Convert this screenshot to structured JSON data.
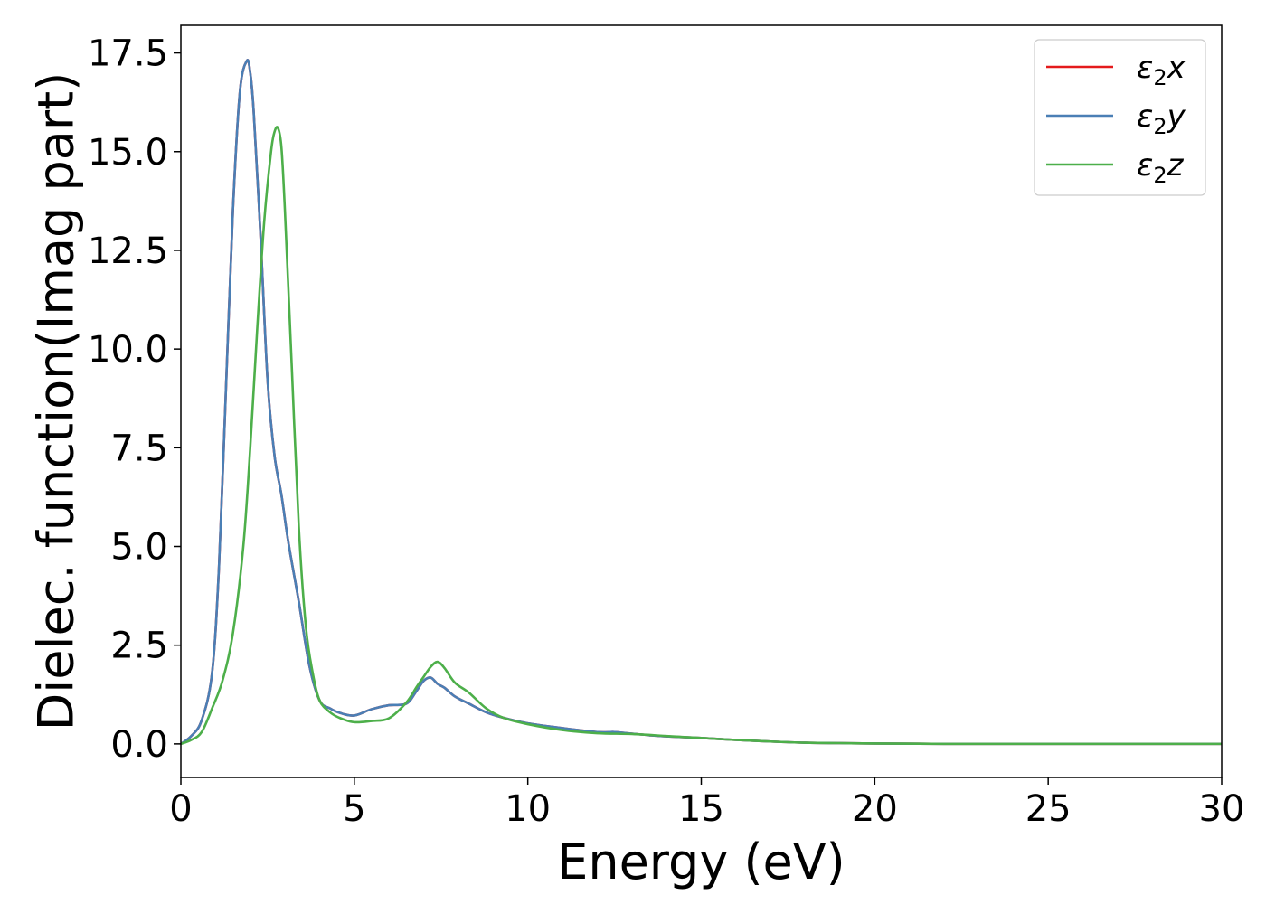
{
  "chart_data": {
    "type": "line",
    "title": "",
    "xlabel": "Energy (eV)",
    "ylabel": "Dielec. function(Imag part)",
    "xlim": [
      0,
      30
    ],
    "ylim": [
      -0.85,
      18.2
    ],
    "xticks": [
      0,
      5,
      10,
      15,
      20,
      25,
      30
    ],
    "yticks": [
      "0.0",
      "2.5",
      "5.0",
      "7.5",
      "10.0",
      "12.5",
      "15.0",
      "17.5"
    ],
    "grid": false,
    "legend_position": "top-right",
    "series": [
      {
        "name": "ε2x",
        "label_main": "ε",
        "label_sub": "2",
        "label_var": "x",
        "color": "#e41a1c",
        "x": [
          0,
          0.3,
          0.6,
          0.9,
          1.1,
          1.3,
          1.5,
          1.7,
          1.9,
          2.0,
          2.1,
          2.3,
          2.5,
          2.7,
          2.9,
          3.1,
          3.4,
          3.7,
          4.0,
          4.3,
          4.6,
          5.0,
          5.5,
          6.0,
          6.5,
          6.8,
          7.0,
          7.2,
          7.4,
          7.6,
          7.9,
          8.3,
          8.8,
          9.3,
          10.0,
          11.0,
          12.0,
          12.5,
          13.0,
          13.5,
          14.0,
          15.0,
          16.0,
          17.0,
          18.0,
          19.0,
          20.0,
          22.0,
          25.0,
          30.0
        ],
        "values": [
          0.0,
          0.2,
          0.6,
          1.8,
          4.5,
          9.0,
          13.5,
          16.5,
          17.3,
          17.0,
          16.0,
          12.8,
          9.2,
          7.3,
          6.3,
          5.1,
          3.6,
          2.0,
          1.1,
          0.9,
          0.78,
          0.72,
          0.88,
          0.98,
          1.02,
          1.35,
          1.6,
          1.68,
          1.52,
          1.42,
          1.2,
          1.02,
          0.8,
          0.66,
          0.52,
          0.4,
          0.3,
          0.3,
          0.26,
          0.22,
          0.19,
          0.15,
          0.1,
          0.06,
          0.03,
          0.02,
          0.01,
          0.0,
          0.0,
          0.0
        ]
      },
      {
        "name": "ε2y",
        "label_main": "ε",
        "label_sub": "2",
        "label_var": "y",
        "color": "#4a7fb5",
        "x": [
          0,
          0.3,
          0.6,
          0.9,
          1.1,
          1.3,
          1.5,
          1.7,
          1.9,
          2.0,
          2.1,
          2.3,
          2.5,
          2.7,
          2.9,
          3.1,
          3.4,
          3.7,
          4.0,
          4.3,
          4.6,
          5.0,
          5.5,
          6.0,
          6.5,
          6.8,
          7.0,
          7.2,
          7.4,
          7.6,
          7.9,
          8.3,
          8.8,
          9.3,
          10.0,
          11.0,
          12.0,
          12.5,
          13.0,
          13.5,
          14.0,
          15.0,
          16.0,
          17.0,
          18.0,
          19.0,
          20.0,
          22.0,
          25.0,
          30.0
        ],
        "values": [
          0.0,
          0.2,
          0.6,
          1.8,
          4.5,
          9.0,
          13.5,
          16.5,
          17.3,
          17.0,
          16.0,
          12.8,
          9.2,
          7.3,
          6.3,
          5.1,
          3.6,
          2.0,
          1.1,
          0.9,
          0.78,
          0.72,
          0.88,
          0.98,
          1.02,
          1.35,
          1.6,
          1.68,
          1.52,
          1.42,
          1.2,
          1.02,
          0.8,
          0.66,
          0.52,
          0.4,
          0.3,
          0.3,
          0.26,
          0.22,
          0.19,
          0.15,
          0.1,
          0.06,
          0.03,
          0.02,
          0.01,
          0.0,
          0.0,
          0.0
        ]
      },
      {
        "name": "ε2z",
        "label_main": "ε",
        "label_sub": "2",
        "label_var": "z",
        "color": "#4daf4a",
        "x": [
          0,
          0.3,
          0.6,
          0.9,
          1.2,
          1.5,
          1.8,
          2.0,
          2.2,
          2.4,
          2.6,
          2.7,
          2.8,
          2.9,
          3.0,
          3.2,
          3.4,
          3.6,
          3.8,
          4.0,
          4.3,
          4.6,
          5.0,
          5.5,
          6.0,
          6.5,
          6.8,
          7.0,
          7.2,
          7.4,
          7.6,
          7.9,
          8.3,
          8.8,
          9.3,
          10.0,
          11.0,
          12.0,
          13.0,
          14.0,
          15.0,
          16.0,
          17.0,
          18.0,
          19.0,
          20.0,
          22.0,
          25.0,
          30.0
        ],
        "values": [
          0.0,
          0.1,
          0.3,
          0.9,
          1.6,
          2.8,
          5.0,
          7.5,
          10.5,
          13.2,
          15.0,
          15.5,
          15.6,
          15.1,
          13.5,
          9.5,
          5.5,
          3.0,
          1.8,
          1.1,
          0.8,
          0.65,
          0.55,
          0.58,
          0.65,
          1.05,
          1.45,
          1.7,
          1.95,
          2.08,
          1.92,
          1.55,
          1.3,
          0.9,
          0.66,
          0.5,
          0.35,
          0.27,
          0.25,
          0.2,
          0.15,
          0.1,
          0.06,
          0.03,
          0.02,
          0.01,
          0.0,
          0.0,
          0.0
        ]
      }
    ]
  }
}
